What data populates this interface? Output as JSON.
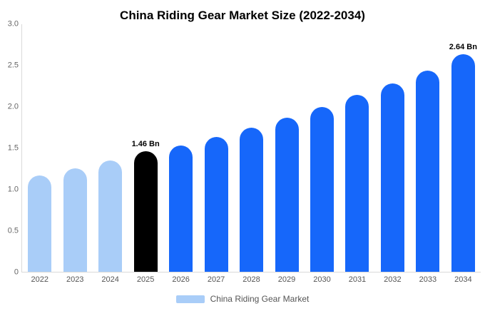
{
  "title": "China Riding Gear Market Size (2022-2034)",
  "legend": {
    "label": "China Riding Gear Market",
    "swatch_color": "#a9cdf8"
  },
  "chart_data": {
    "type": "bar",
    "title": "China Riding Gear Market Size (2022-2034)",
    "xlabel": "",
    "ylabel": "",
    "ylim": [
      0,
      3
    ],
    "grid": false,
    "legend_position": "bottom",
    "categories": [
      "2022",
      "2023",
      "2024",
      "2025",
      "2026",
      "2027",
      "2028",
      "2029",
      "2030",
      "2031",
      "2032",
      "2033",
      "2034"
    ],
    "values": [
      1.17,
      1.25,
      1.35,
      1.46,
      1.53,
      1.63,
      1.75,
      1.87,
      2.0,
      2.14,
      2.28,
      2.44,
      2.64
    ],
    "data_labels": [
      "",
      "",
      "",
      "1.46 Bn",
      "",
      "",
      "",
      "",
      "",
      "",
      "",
      "",
      "2.64 Bn"
    ],
    "bar_colors": [
      "#a9cdf8",
      "#a9cdf8",
      "#a9cdf8",
      "#000000",
      "#1667fa",
      "#1667fa",
      "#1667fa",
      "#1667fa",
      "#1667fa",
      "#1667fa",
      "#1667fa",
      "#1667fa",
      "#1667fa"
    ],
    "ytick_values": [
      0,
      0.5,
      1.0,
      1.5,
      2.0,
      2.5,
      3.0
    ],
    "ytick_labels": [
      "0",
      "0.5",
      "1.0",
      "1.5",
      "2.0",
      "2.5",
      "3.0"
    ],
    "colors": {
      "light_blue": "#a9cdf8",
      "highlight_black": "#000000",
      "blue": "#1667fa",
      "axis_line": "#d9d9d9",
      "tick_text": "#666666"
    }
  }
}
